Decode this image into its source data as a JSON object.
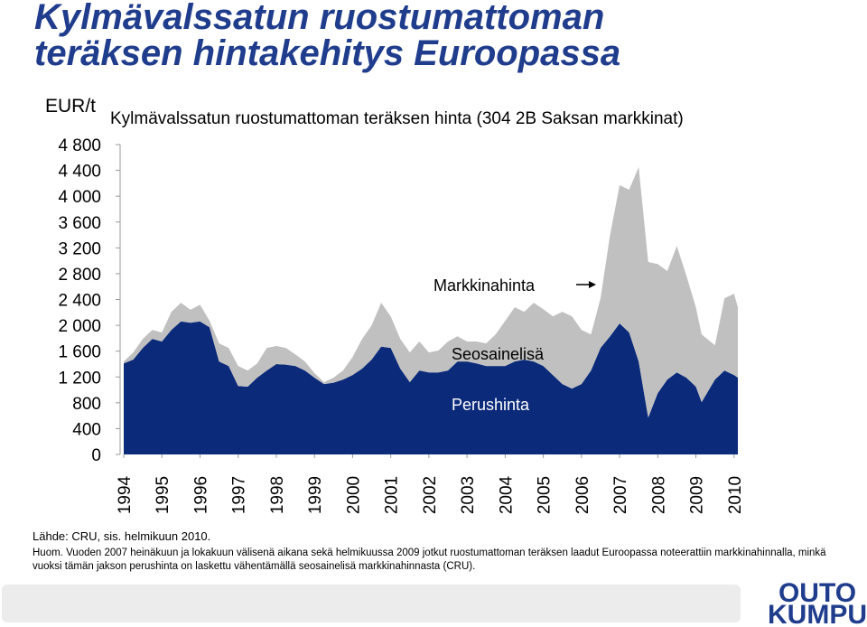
{
  "chart_data": {
    "type": "stacked_area",
    "title": [
      "Kylmävalssatun ruostumattoman",
      "teräksen hintakehitys Euroopassa"
    ],
    "subtitle": "Kylmävalssatun ruostumattoman teräksen hinta (304 2B Saksan markkinat)",
    "y_label": "EUR/t",
    "x": [
      1994,
      1994.25,
      1994.5,
      1994.75,
      1995,
      1995.25,
      1995.5,
      1995.75,
      1996,
      1996.25,
      1996.5,
      1996.75,
      1997,
      1997.25,
      1997.5,
      1997.75,
      1998,
      1998.25,
      1998.5,
      1998.75,
      1999,
      1999.25,
      1999.5,
      1999.75,
      2000,
      2000.25,
      2000.5,
      2000.75,
      2001,
      2001.25,
      2001.5,
      2001.75,
      2002,
      2002.25,
      2002.5,
      2002.75,
      2003,
      2003.25,
      2003.5,
      2003.75,
      2004,
      2004.25,
      2004.5,
      2004.75,
      2005,
      2005.25,
      2005.5,
      2005.75,
      2006,
      2006.25,
      2006.5,
      2006.75,
      2007,
      2007.25,
      2007.5,
      2007.75,
      2008,
      2008.25,
      2008.5,
      2008.75,
      2009,
      2009.15,
      2009.5,
      2009.75,
      2010,
      2010.1
    ],
    "series": [
      {
        "name": "Perushinta",
        "color": "#0b2a7a",
        "values": [
          1410,
          1470,
          1650,
          1790,
          1750,
          1930,
          2060,
          2040,
          2060,
          1970,
          1440,
          1370,
          1060,
          1050,
          1190,
          1300,
          1400,
          1390,
          1370,
          1300,
          1190,
          1090,
          1110,
          1160,
          1230,
          1330,
          1470,
          1670,
          1650,
          1330,
          1120,
          1300,
          1270,
          1270,
          1300,
          1440,
          1440,
          1410,
          1370,
          1370,
          1370,
          1440,
          1470,
          1440,
          1370,
          1230,
          1090,
          1020,
          1090,
          1300,
          1650,
          1830,
          2030,
          1890,
          1440,
          570,
          950,
          1160,
          1270,
          1190,
          1050,
          810,
          1160,
          1300,
          1230,
          1190
        ]
      },
      {
        "name": "Seosainelisä",
        "color": "#c0c0c0",
        "values": [
          30,
          110,
          140,
          140,
          140,
          280,
          290,
          200,
          260,
          100,
          280,
          280,
          310,
          250,
          220,
          350,
          280,
          260,
          180,
          140,
          70,
          30,
          80,
          140,
          280,
          460,
          530,
          680,
          490,
          460,
          460,
          450,
          310,
          340,
          450,
          390,
          310,
          340,
          350,
          490,
          700,
          840,
          740,
          910,
          880,
          910,
          1120,
          1120,
          840,
          560,
          770,
          1570,
          2140,
          2210,
          3010,
          2410,
          2000,
          1680,
          1960,
          1580,
          1230,
          1050,
          530,
          1120,
          1260,
          1090
        ]
      }
    ],
    "total_label": "Markkinahinta",
    "xlim": [
      1994,
      2010.1
    ],
    "xticks": [
      1994,
      1995,
      1996,
      1997,
      1998,
      1999,
      2000,
      2001,
      2002,
      2003,
      2004,
      2005,
      2006,
      2007,
      2008,
      2009,
      2010
    ],
    "ylim": [
      0,
      4800
    ],
    "yticks": [
      0,
      {
        "value": 400,
        "label": "400"
      },
      {
        "value": 800,
        "label": "800"
      },
      {
        "value": 1200,
        "label": "1 200"
      },
      {
        "value": 1600,
        "label": "1 600"
      },
      {
        "value": 2000,
        "label": "2 000"
      },
      {
        "value": 2400,
        "label": "2 400"
      },
      {
        "value": 2800,
        "label": "2 800"
      },
      {
        "value": 3200,
        "label": "3 200"
      },
      {
        "value": 3600,
        "label": "3 600"
      },
      {
        "value": 4000,
        "label": "4 000"
      },
      {
        "value": 4400,
        "label": "4 400"
      },
      {
        "value": 4800,
        "label": "4 800"
      }
    ],
    "source": "Lähde: CRU, sis. helmikuun 2010.",
    "note": "Huom. Vuoden 2007 heinäkuun ja lokakuun välisenä aikana sekä helmikuussa 2009 jotkut ruostumattoman teräksen laadut Euroopassa noteerattiin markkinahinnalla, minkä vuoksi tämän jakson perushinta on laskettu vähentämällä seosainelisä markkinahinnasta (CRU).",
    "logo": [
      "OUTO",
      "KUMPU"
    ]
  }
}
